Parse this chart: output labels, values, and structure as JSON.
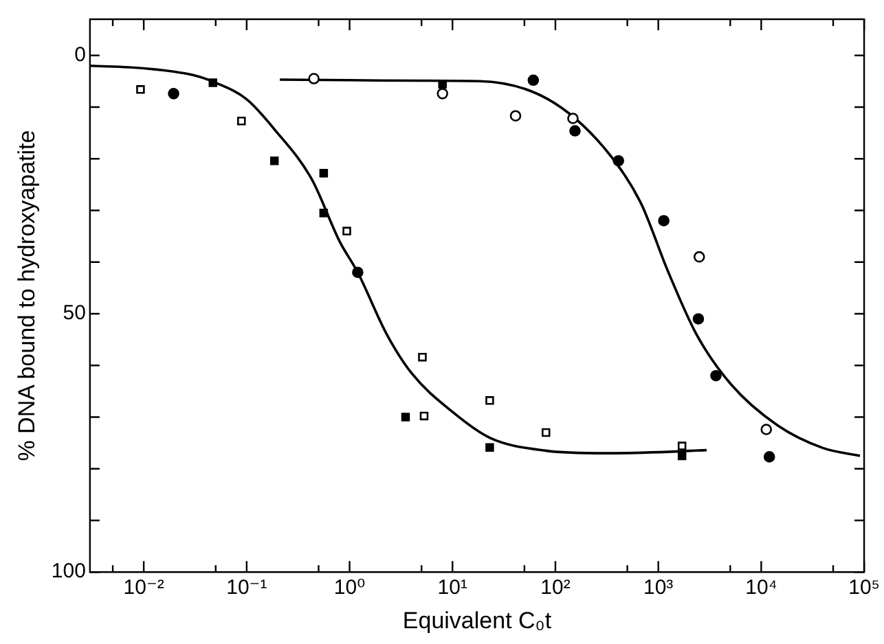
{
  "chart_data": {
    "type": "scatter",
    "xlabel": "Equivalent C₀t",
    "ylabel": "% DNA bound to hydroxyapatite",
    "log": "x",
    "xlim": [
      0.003,
      100000
    ],
    "xticks": [
      {
        "value": 0.005,
        "label": null
      },
      {
        "value": 0.01,
        "label": "10⁻²"
      },
      {
        "value": 0.05,
        "label": null
      },
      {
        "value": 0.1,
        "label": "10⁻¹"
      },
      {
        "value": 0.5,
        "label": null
      },
      {
        "value": 1,
        "label": "10⁰"
      },
      {
        "value": 5,
        "label": null
      },
      {
        "value": 10,
        "label": "10¹"
      },
      {
        "value": 50,
        "label": null
      },
      {
        "value": 100,
        "label": "10²"
      },
      {
        "value": 500,
        "label": null
      },
      {
        "value": 1000,
        "label": "10³"
      },
      {
        "value": 5000,
        "label": null
      },
      {
        "value": 10000,
        "label": "10⁴"
      },
      {
        "value": 50000,
        "label": null
      },
      {
        "value": 100000,
        "label": "10⁵"
      }
    ],
    "ylim": [
      100,
      -7
    ],
    "yticks": [
      0,
      {
        "value": 10,
        "label": null
      },
      {
        "value": 20,
        "label": null
      },
      {
        "value": 30,
        "label": null
      },
      {
        "value": 40,
        "label": null
      },
      50,
      {
        "value": 60,
        "label": null
      },
      {
        "value": 70,
        "label": null
      },
      {
        "value": 80,
        "label": null
      },
      {
        "value": 90,
        "label": null
      },
      100
    ],
    "grid": false,
    "legend": false,
    "series": [
      {
        "marker": "square",
        "color": "#ffffff",
        "x": [
          0.0093,
          0.089,
          0.94,
          5.1,
          5.3,
          23,
          81,
          1700
        ],
        "values": [
          6.6,
          12.7,
          34,
          58.4,
          69.8,
          66.8,
          73,
          75.6
        ]
      },
      {
        "marker": "square",
        "color": "#000000",
        "x": [
          0.047,
          0.186,
          0.56,
          0.56,
          3.5,
          23,
          1700,
          8
        ],
        "values": [
          5.3,
          20.4,
          22.8,
          30.5,
          70,
          75.9,
          77.5,
          5.6
        ]
      },
      {
        "marker": "circle",
        "color": "#ffffff",
        "x": [
          0.45,
          8,
          41,
          148,
          2500,
          11200
        ],
        "values": [
          4.5,
          7.4,
          11.7,
          12.2,
          39,
          72.4
        ]
      },
      {
        "marker": "circle",
        "color": "#000000",
        "x": [
          0.0195,
          1.2,
          61,
          155,
          410,
          1130,
          2450,
          3630,
          12000
        ],
        "values": [
          7.4,
          42,
          4.8,
          14.6,
          20.4,
          32,
          51,
          62,
          77.7
        ]
      },
      {
        "type": "line",
        "marker": "none",
        "color": "#000000",
        "x": [
          0.003,
          0.01,
          0.03,
          0.05,
          0.1,
          0.186,
          0.43,
          0.8,
          1.2,
          2.3,
          4,
          10,
          23,
          80,
          300,
          1000,
          2950
        ],
        "values": [
          2,
          2.5,
          3.8,
          5.3,
          8.5,
          14.3,
          24,
          36,
          42,
          54,
          61.5,
          69,
          74,
          76.5,
          77,
          76.8,
          76.4
        ]
      },
      {
        "type": "line",
        "marker": "none",
        "color": "#000000",
        "x": [
          0.21,
          1,
          5,
          18.5,
          85,
          295,
          670,
          1230,
          2350,
          5100,
          14400,
          40000,
          91000
        ],
        "values": [
          4.7,
          4.8,
          4.9,
          5,
          8.5,
          17.8,
          28.4,
          41.6,
          54,
          63.7,
          71.6,
          76,
          77.5
        ]
      }
    ]
  }
}
